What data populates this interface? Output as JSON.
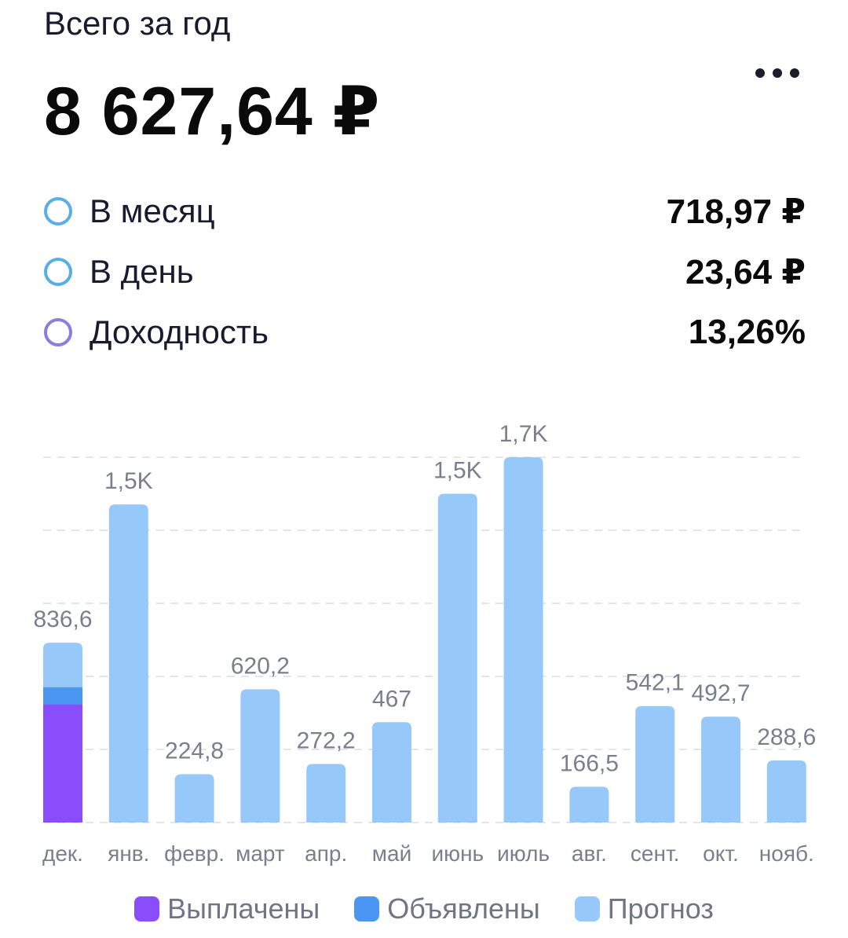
{
  "header": {
    "label": "Всего за год",
    "total": "8 627,64 ₽"
  },
  "stats": [
    {
      "label": "В месяц",
      "value": "718,97 ₽",
      "circle_color": "#5aaee6"
    },
    {
      "label": "В день",
      "value": "23,64 ₽",
      "circle_color": "#5aaee6"
    },
    {
      "label": "Доходность",
      "value": "13,26%",
      "circle_color": "#8a7fdc"
    }
  ],
  "chart_data": {
    "type": "bar",
    "stacked": true,
    "categories": [
      "дек.",
      "янв.",
      "февр.",
      "март",
      "апр.",
      "май",
      "июнь",
      "июль",
      "авг.",
      "сент.",
      "окт.",
      "нояб."
    ],
    "value_labels": [
      "836,6",
      "1,5K",
      "224,8",
      "620,2",
      "272,2",
      "467",
      "1,5K",
      "1,7K",
      "166,5",
      "542,1",
      "492,7",
      "288,6"
    ],
    "series": [
      {
        "name": "Выплачены",
        "color": "#8a4dfb",
        "values": [
          550,
          0,
          0,
          0,
          0,
          0,
          0,
          0,
          0,
          0,
          0,
          0
        ]
      },
      {
        "name": "Объявлены",
        "color": "#4a96f0",
        "values": [
          80,
          0,
          0,
          0,
          0,
          0,
          0,
          0,
          0,
          0,
          0,
          0
        ]
      },
      {
        "name": "Прогноз",
        "color": "#96c8fa",
        "values": [
          206.6,
          1480,
          224.8,
          620.2,
          272.2,
          467,
          1530,
          1700,
          166.5,
          542.1,
          492.7,
          288.6
        ]
      }
    ],
    "ylim": [
      0,
      1700
    ],
    "grid": true
  }
}
